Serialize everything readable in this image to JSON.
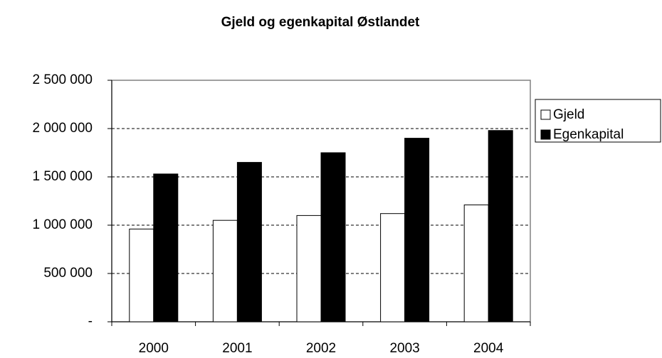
{
  "chart_data": {
    "type": "bar",
    "title": "Gjeld og egenkapital Østlandet",
    "categories": [
      "2000",
      "2001",
      "2002",
      "2003",
      "2004"
    ],
    "series": [
      {
        "name": "Gjeld",
        "color": "#ffffff",
        "values": [
          960000,
          1050000,
          1100000,
          1120000,
          1210000
        ]
      },
      {
        "name": "Egenkapital",
        "color": "#000000",
        "values": [
          1530000,
          1650000,
          1750000,
          1900000,
          1980000
        ]
      }
    ],
    "ylim": [
      0,
      2500000
    ],
    "yticks": [
      {
        "value": 0,
        "label": "-"
      },
      {
        "value": 500000,
        "label": "500 000"
      },
      {
        "value": 1000000,
        "label": "1 000 000"
      },
      {
        "value": 1500000,
        "label": "1 500 000"
      },
      {
        "value": 2000000,
        "label": "2 000 000"
      },
      {
        "value": 2500000,
        "label": "2 500 000"
      }
    ],
    "grid": true,
    "legend": "right"
  }
}
